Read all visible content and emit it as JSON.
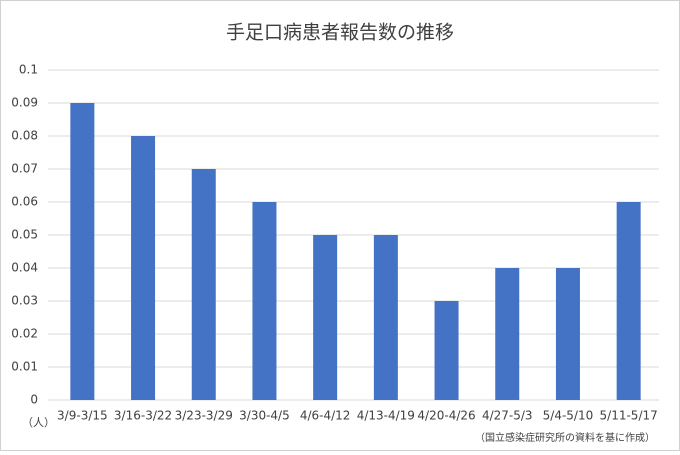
{
  "chart_data": {
    "type": "bar",
    "title": "手足口病患者報告数の推移",
    "categories": [
      "3/9-3/15",
      "3/16-3/22",
      "3/23-3/29",
      "3/30-4/5",
      "4/6-4/12",
      "4/13-4/19",
      "4/20-4/26",
      "4/27-5/3",
      "5/4-5/10",
      "5/11-5/17"
    ],
    "values": [
      0.09,
      0.08,
      0.07,
      0.06,
      0.05,
      0.05,
      0.03,
      0.04,
      0.04,
      0.06
    ],
    "color": "#4472c4",
    "ylim": [
      0,
      0.1
    ],
    "yticks": [
      0,
      0.01,
      0.02,
      0.03,
      0.04,
      0.05,
      0.06,
      0.07,
      0.08,
      0.09,
      0.1
    ],
    "grid": true,
    "y_unit_label": "（人）",
    "source": "（国立感染症研究所の資料を基に作成）"
  }
}
